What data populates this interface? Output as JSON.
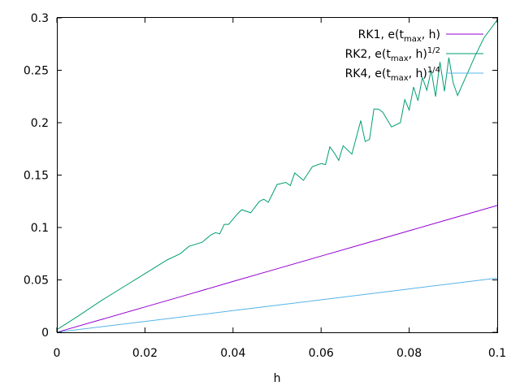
{
  "chart_data": {
    "type": "line",
    "xlabel": "h",
    "ylabel": "",
    "xlim": [
      0,
      0.1
    ],
    "ylim": [
      0,
      0.3
    ],
    "xticks": [
      "0",
      "0.02",
      "0.04",
      "0.06",
      "0.08",
      "0.1"
    ],
    "xtick_values": [
      0,
      0.02,
      0.04,
      0.06,
      0.08,
      0.1
    ],
    "yticks": [
      "0",
      "0.05",
      "0.1",
      "0.15",
      "0.2",
      "0.25",
      "0.3"
    ],
    "ytick_values": [
      0,
      0.05,
      0.1,
      0.15,
      0.2,
      0.25,
      0.3
    ],
    "grid": false,
    "legend_position": "top-right",
    "series": [
      {
        "name": "RK1, e(tmax, h)",
        "legend_base": "RK1, e(t",
        "legend_sub": "max",
        "legend_tail": ", h)",
        "legend_sup": "",
        "color": "#9400d3",
        "x": [
          0.0002,
          0.01,
          0.02,
          0.03,
          0.04,
          0.05,
          0.06,
          0.07,
          0.08,
          0.09,
          0.1
        ],
        "y": [
          0.0002,
          0.0121,
          0.0242,
          0.0363,
          0.0485,
          0.0606,
          0.0727,
          0.0848,
          0.0969,
          0.109,
          0.121
        ]
      },
      {
        "name": "RK2, e(tmax, h)1/2",
        "legend_base": "RK2, e(t",
        "legend_sub": "max",
        "legend_tail": ", h)",
        "legend_sup": "1/2",
        "color": "#009e73",
        "x": [
          0.0002,
          0.005,
          0.01,
          0.015,
          0.02,
          0.025,
          0.028,
          0.03,
          0.033,
          0.035,
          0.036,
          0.037,
          0.038,
          0.039,
          0.04,
          0.041,
          0.042,
          0.044,
          0.046,
          0.047,
          0.048,
          0.05,
          0.052,
          0.053,
          0.054,
          0.056,
          0.058,
          0.06,
          0.061,
          0.062,
          0.063,
          0.064,
          0.065,
          0.067,
          0.069,
          0.07,
          0.071,
          0.072,
          0.073,
          0.074,
          0.076,
          0.078,
          0.079,
          0.08,
          0.081,
          0.082,
          0.083,
          0.084,
          0.085,
          0.086,
          0.087,
          0.088,
          0.089,
          0.09,
          0.091,
          0.093,
          0.095,
          0.097,
          0.1
        ],
        "y": [
          0.003,
          0.016,
          0.03,
          0.043,
          0.056,
          0.069,
          0.075,
          0.082,
          0.086,
          0.093,
          0.095,
          0.094,
          0.103,
          0.103,
          0.108,
          0.113,
          0.117,
          0.114,
          0.125,
          0.127,
          0.124,
          0.141,
          0.143,
          0.14,
          0.152,
          0.145,
          0.158,
          0.161,
          0.16,
          0.177,
          0.171,
          0.164,
          0.178,
          0.17,
          0.202,
          0.182,
          0.184,
          0.213,
          0.213,
          0.21,
          0.196,
          0.2,
          0.222,
          0.212,
          0.234,
          0.221,
          0.243,
          0.231,
          0.25,
          0.225,
          0.258,
          0.23,
          0.262,
          0.238,
          0.226,
          0.245,
          0.264,
          0.281,
          0.298
        ]
      },
      {
        "name": "RK4, e(tmax, h)1/4",
        "legend_base": "RK4, e(t",
        "legend_sub": "max",
        "legend_tail": ", h)",
        "legend_sup": "1/4",
        "color": "#56b4e9",
        "x": [
          0.0002,
          0.02,
          0.04,
          0.06,
          0.08,
          0.1
        ],
        "y": [
          0.0002,
          0.0104,
          0.0207,
          0.031,
          0.0414,
          0.0518
        ]
      }
    ]
  }
}
